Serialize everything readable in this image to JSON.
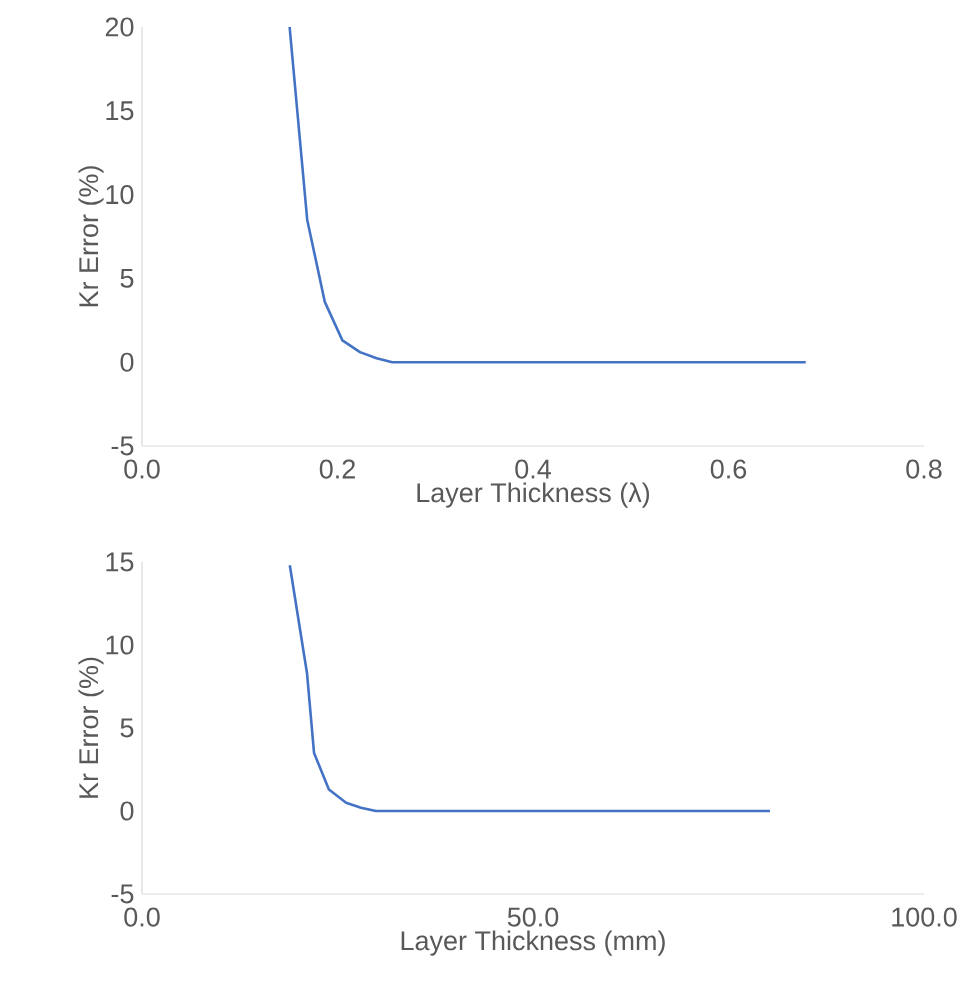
{
  "chart_data": [
    {
      "type": "line",
      "xlabel": "Layer Thickness (λ)",
      "ylabel": "Kr Error (%)",
      "x": [
        0.151,
        0.169,
        0.187,
        0.205,
        0.223,
        0.24,
        0.256,
        0.679
      ],
      "series": [
        {
          "color": "#4472c4",
          "values": [
            20,
            8.5,
            3.6,
            1.3,
            0.6,
            0.24,
            0,
            0
          ]
        }
      ],
      "xlim": [
        0,
        0.8
      ],
      "xticks": [
        {
          "value": 0,
          "label": "0.0"
        },
        {
          "value": 0.2,
          "label": "0.2"
        },
        {
          "value": 0.4,
          "label": "0.4"
        },
        {
          "value": 0.6,
          "label": "0.6"
        },
        {
          "value": 0.8,
          "label": "0.8"
        }
      ],
      "ylim": [
        -5,
        20
      ],
      "yticks": [
        -5,
        0,
        5,
        10,
        15,
        20
      ],
      "marker": "none",
      "line_style": "solid"
    },
    {
      "type": "line",
      "xlabel": "Layer Thickness (mm)",
      "ylabel": "Kr Error (%)",
      "x": [
        18.9,
        21.1,
        22.0,
        23.9,
        26.1,
        28.0,
        29.9,
        80.3
      ],
      "series": [
        {
          "color": "#4472c4",
          "values": [
            14.8,
            8.3,
            3.5,
            1.3,
            0.5,
            0.2,
            0,
            0
          ]
        }
      ],
      "xlim": [
        0,
        100
      ],
      "xticks": [
        {
          "value": 0,
          "label": "0.0"
        },
        {
          "value": 50,
          "label": "50.0"
        },
        {
          "value": 100,
          "label": "100.0"
        }
      ],
      "ylim": [
        -5,
        15
      ],
      "yticks": [
        -5,
        0,
        5,
        10,
        15
      ],
      "marker": "none",
      "line_style": "solid"
    }
  ]
}
